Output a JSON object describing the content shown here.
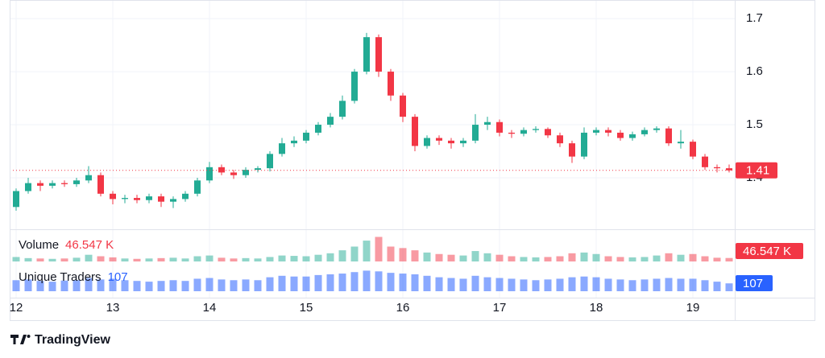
{
  "chart_data": {
    "type": "candlestick",
    "categories": [
      "12",
      null,
      null,
      null,
      null,
      null,
      null,
      null,
      "13",
      null,
      null,
      null,
      null,
      null,
      null,
      null,
      "14",
      null,
      null,
      null,
      null,
      null,
      null,
      null,
      "15",
      null,
      null,
      null,
      null,
      null,
      null,
      null,
      "16",
      null,
      null,
      null,
      null,
      null,
      null,
      null,
      "17",
      null,
      null,
      null,
      null,
      null,
      null,
      null,
      "18",
      null,
      null,
      null,
      null,
      null,
      null,
      null,
      "19",
      null,
      null,
      null
    ],
    "candles": {
      "up_color": "#22ab94",
      "down_color": "#f23645",
      "open": [
        1.345,
        1.375,
        1.39,
        1.385,
        1.39,
        1.388,
        1.395,
        1.405,
        1.37,
        1.36,
        1.362,
        1.358,
        1.365,
        1.355,
        1.36,
        1.37,
        1.395,
        1.42,
        1.41,
        1.405,
        1.415,
        1.418,
        1.445,
        1.465,
        1.47,
        1.485,
        1.5,
        1.515,
        1.545,
        1.6,
        1.665,
        1.6,
        1.555,
        1.515,
        1.46,
        1.475,
        1.47,
        1.465,
        1.47,
        1.5,
        1.505,
        1.485,
        1.483,
        1.49,
        1.492,
        1.48,
        1.465,
        1.44,
        1.485,
        1.49,
        1.485,
        1.475,
        1.482,
        1.49,
        1.493,
        1.465,
        1.468,
        1.44,
        1.42,
        1.418
      ],
      "high": [
        1.38,
        1.4,
        1.395,
        1.395,
        1.395,
        1.4,
        1.422,
        1.41,
        1.375,
        1.368,
        1.368,
        1.37,
        1.37,
        1.365,
        1.375,
        1.4,
        1.43,
        1.425,
        1.415,
        1.42,
        1.422,
        1.45,
        1.475,
        1.478,
        1.49,
        1.505,
        1.522,
        1.555,
        1.605,
        1.673,
        1.67,
        1.605,
        1.56,
        1.52,
        1.48,
        1.48,
        1.475,
        1.475,
        1.52,
        1.515,
        1.51,
        1.49,
        1.495,
        1.497,
        1.495,
        1.485,
        1.47,
        1.495,
        1.495,
        1.495,
        1.49,
        1.487,
        1.495,
        1.497,
        1.497,
        1.49,
        1.472,
        1.445,
        1.425,
        1.425
      ],
      "low": [
        1.338,
        1.37,
        1.375,
        1.38,
        1.383,
        1.383,
        1.39,
        1.365,
        1.35,
        1.352,
        1.352,
        1.352,
        1.345,
        1.343,
        1.355,
        1.365,
        1.39,
        1.405,
        1.398,
        1.4,
        1.41,
        1.412,
        1.44,
        1.458,
        1.465,
        1.48,
        1.495,
        1.51,
        1.54,
        1.595,
        1.59,
        1.545,
        1.505,
        1.45,
        1.455,
        1.462,
        1.455,
        1.458,
        1.465,
        1.49,
        1.478,
        1.475,
        1.478,
        1.485,
        1.475,
        1.458,
        1.428,
        1.435,
        1.48,
        1.478,
        1.47,
        1.47,
        1.478,
        1.485,
        1.46,
        1.455,
        1.435,
        1.415,
        1.41,
        1.41
      ],
      "close": [
        1.375,
        1.39,
        1.385,
        1.39,
        1.388,
        1.395,
        1.405,
        1.37,
        1.36,
        1.362,
        1.358,
        1.365,
        1.355,
        1.36,
        1.37,
        1.395,
        1.42,
        1.41,
        1.405,
        1.415,
        1.418,
        1.445,
        1.465,
        1.47,
        1.485,
        1.5,
        1.515,
        1.545,
        1.6,
        1.665,
        1.6,
        1.555,
        1.515,
        1.46,
        1.475,
        1.47,
        1.465,
        1.47,
        1.5,
        1.505,
        1.485,
        1.483,
        1.49,
        1.492,
        1.48,
        1.465,
        1.44,
        1.485,
        1.49,
        1.485,
        1.475,
        1.482,
        1.49,
        1.493,
        1.465,
        1.468,
        1.44,
        1.42,
        1.418,
        1.414
      ],
      "last_value_label": "1.41"
    },
    "ylim": [
      1.303,
      1.735
    ],
    "yticks": [
      1.4,
      1.5,
      1.6,
      1.7
    ],
    "grid": true,
    "series": [
      {
        "name": "Volume",
        "up_color": "#22ab94",
        "down_color": "#f23645",
        "last_value_label": "46.547 K",
        "ylim": [
          0,
          400000
        ],
        "values": [
          60000,
          45000,
          40000,
          35000,
          40000,
          50000,
          90000,
          70000,
          55000,
          40000,
          35000,
          40000,
          45000,
          50000,
          40000,
          70000,
          80000,
          50000,
          40000,
          45000,
          40000,
          60000,
          80000,
          75000,
          70000,
          90000,
          110000,
          150000,
          200000,
          280000,
          330000,
          200000,
          180000,
          150000,
          120000,
          100000,
          90000,
          80000,
          140000,
          110000,
          90000,
          70000,
          60000,
          55000,
          60000,
          70000,
          110000,
          120000,
          100000,
          70000,
          60000,
          55000,
          60000,
          80000,
          110000,
          90000,
          100000,
          70000,
          50000,
          46547
        ]
      },
      {
        "name": "Unique Traders",
        "color": "#2962ff",
        "ylim": [
          0,
          350
        ],
        "values": [
          150,
          160,
          140,
          130,
          145,
          150,
          180,
          160,
          170,
          150,
          140,
          130,
          140,
          150,
          140,
          170,
          180,
          160,
          150,
          160,
          150,
          190,
          210,
          200,
          200,
          220,
          230,
          240,
          260,
          280,
          270,
          250,
          240,
          230,
          210,
          190,
          180,
          170,
          210,
          190,
          180,
          170,
          160,
          150,
          160,
          170,
          190,
          200,
          190,
          170,
          160,
          150,
          160,
          170,
          180,
          170,
          170,
          150,
          130,
          107
        ]
      }
    ]
  },
  "branding": "TradingView"
}
